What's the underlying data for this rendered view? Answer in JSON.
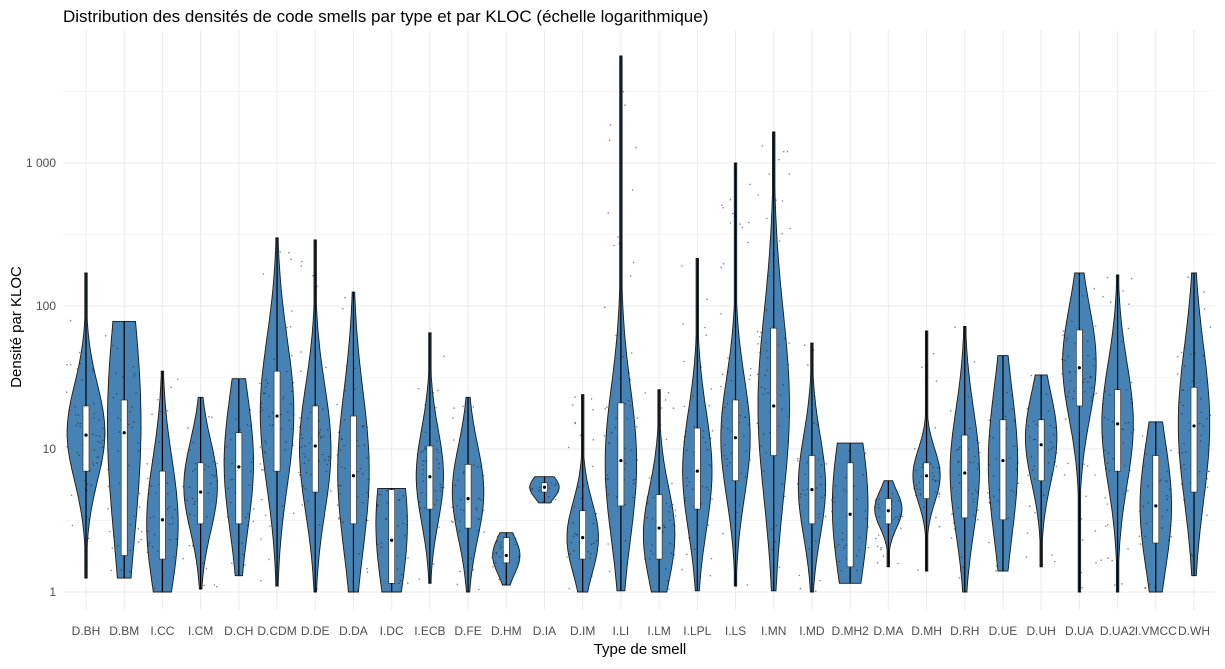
{
  "chart_data": {
    "type": "violin",
    "title": "Distribution des densités de code smells par type et par KLOC (échelle logarithmique)",
    "xlabel": "Type de smell",
    "ylabel": "Densité par KLOC",
    "y_scale": "log10",
    "ylim": [
      0.82,
      7200
    ],
    "y_ticks": [
      1,
      10,
      100,
      1000
    ],
    "y_tick_labels": [
      "1",
      "10",
      "100",
      "1 000"
    ],
    "grid": true,
    "fill_color": "#4682b4",
    "categories": [
      "D.BH",
      "D.BM",
      "I.CC",
      "I.CM",
      "D.CH",
      "D.CDM",
      "D.DE",
      "D.DA",
      "I.DC",
      "I.ECB",
      "D.FE",
      "D.HM",
      "D.IA",
      "D.IM",
      "I.LI",
      "I.LM",
      "I.LPL",
      "I.LS",
      "I.MN",
      "I.MD",
      "D.MH2",
      "D.MA",
      "D.MH",
      "D.RH",
      "D.UE",
      "D.UH",
      "D.UA",
      "D.UA2",
      "I.VMCC",
      "D.WH"
    ],
    "series": [
      {
        "category": "D.BH",
        "min": 1.25,
        "q1": 7,
        "median": 12.5,
        "q3": 20,
        "max": 170,
        "mode": 13,
        "width": 0.9
      },
      {
        "category": "D.BM",
        "min": 1.25,
        "q1": 1.8,
        "median": 13,
        "q3": 22,
        "max": 78,
        "mode": 15,
        "width": 0.8
      },
      {
        "category": "I.CC",
        "min": 1,
        "q1": 1.7,
        "median": 3.2,
        "q3": 7,
        "max": 35,
        "mode": 3,
        "width": 0.75
      },
      {
        "category": "I.CM",
        "min": 1.05,
        "q1": 3,
        "median": 5,
        "q3": 8,
        "max": 23,
        "mode": 5.5,
        "width": 0.8
      },
      {
        "category": "D.CH",
        "min": 1.3,
        "q1": 3,
        "median": 7.5,
        "q3": 13,
        "max": 31,
        "mode": 8,
        "width": 0.7
      },
      {
        "category": "D.CDM",
        "min": 1.1,
        "q1": 7,
        "median": 17,
        "q3": 35,
        "max": 300,
        "mode": 18,
        "width": 0.8
      },
      {
        "category": "D.DE",
        "min": 1,
        "q1": 5,
        "median": 10.5,
        "q3": 20,
        "max": 290,
        "mode": 10,
        "width": 0.75
      },
      {
        "category": "D.DA",
        "min": 1,
        "q1": 3,
        "median": 6.5,
        "q3": 17,
        "max": 125,
        "mode": 7,
        "width": 0.75
      },
      {
        "category": "I.DC",
        "min": 1,
        "q1": 1.15,
        "median": 2.3,
        "q3": 5.2,
        "max": 5.3,
        "mode": 3,
        "width": 0.75
      },
      {
        "category": "I.ECB",
        "min": 1.15,
        "q1": 3.8,
        "median": 6.4,
        "q3": 10.5,
        "max": 65,
        "mode": 6.5,
        "width": 0.65
      },
      {
        "category": "D.FE",
        "min": 1,
        "q1": 2.8,
        "median": 4.5,
        "q3": 7.8,
        "max": 23,
        "mode": 5,
        "width": 0.75
      },
      {
        "category": "D.HM",
        "min": 1.12,
        "q1": 1.6,
        "median": 1.8,
        "q3": 2.4,
        "max": 2.6,
        "mode": 1.8,
        "width": 0.65
      },
      {
        "category": "D.IA",
        "min": 4.2,
        "q1": 5,
        "median": 5.4,
        "q3": 5.8,
        "max": 6.4,
        "mode": 5.4,
        "width": 0.7
      },
      {
        "category": "D.IM",
        "min": 1,
        "q1": 1.7,
        "median": 2.4,
        "q3": 3.7,
        "max": 24,
        "mode": 2.4,
        "width": 0.75
      },
      {
        "category": "I.LI",
        "min": 1.02,
        "q1": 4,
        "median": 8.3,
        "q3": 21,
        "max": 5600,
        "mode": 8,
        "width": 0.75
      },
      {
        "category": "I.LM",
        "min": 1,
        "q1": 1.7,
        "median": 2.8,
        "q3": 4.8,
        "max": 26,
        "mode": 2.5,
        "width": 0.75
      },
      {
        "category": "I.LPL",
        "min": 1.02,
        "q1": 3.8,
        "median": 7,
        "q3": 14,
        "max": 215,
        "mode": 7,
        "width": 0.7
      },
      {
        "category": "I.LS",
        "min": 1.1,
        "q1": 6,
        "median": 12,
        "q3": 22,
        "max": 1000,
        "mode": 12,
        "width": 0.7
      },
      {
        "category": "I.MN",
        "min": 1.02,
        "q1": 9,
        "median": 20,
        "q3": 70,
        "max": 1650,
        "mode": 20,
        "width": 0.75
      },
      {
        "category": "I.MD",
        "min": 1,
        "q1": 3,
        "median": 5.2,
        "q3": 9,
        "max": 55,
        "mode": 5.5,
        "width": 0.65
      },
      {
        "category": "D.MH2",
        "min": 1.15,
        "q1": 1.5,
        "median": 3.5,
        "q3": 8,
        "max": 11,
        "mode": 4,
        "width": 0.85
      },
      {
        "category": "D.MA",
        "min": 1.5,
        "q1": 3,
        "median": 3.7,
        "q3": 4.5,
        "max": 6,
        "mode": 3.8,
        "width": 0.65
      },
      {
        "category": "D.MH",
        "min": 1.4,
        "q1": 4.5,
        "median": 6.5,
        "q3": 8,
        "max": 67,
        "mode": 6.5,
        "width": 0.65
      },
      {
        "category": "D.RH",
        "min": 1,
        "q1": 3.3,
        "median": 6.8,
        "q3": 12.5,
        "max": 72,
        "mode": 7,
        "width": 0.7
      },
      {
        "category": "D.UE",
        "min": 1.4,
        "q1": 3.2,
        "median": 8.3,
        "q3": 16,
        "max": 45,
        "mode": 8,
        "width": 0.7
      },
      {
        "category": "D.UH",
        "min": 1.5,
        "q1": 6,
        "median": 10.7,
        "q3": 16,
        "max": 33,
        "mode": 12,
        "width": 0.75
      },
      {
        "category": "D.UA",
        "min": 1,
        "q1": 20,
        "median": 37,
        "q3": 68,
        "max": 170,
        "mode": 40,
        "width": 0.8
      },
      {
        "category": "D.UA2",
        "min": 1,
        "q1": 7,
        "median": 15,
        "q3": 26,
        "max": 165,
        "mode": 15,
        "width": 0.75
      },
      {
        "category": "I.VMCC",
        "min": 1,
        "q1": 2.2,
        "median": 4,
        "q3": 9,
        "max": 15.5,
        "mode": 4,
        "width": 0.75
      },
      {
        "category": "D.WH",
        "min": 1.3,
        "q1": 5,
        "median": 14.5,
        "q3": 27,
        "max": 170,
        "mode": 15,
        "width": 0.75
      }
    ]
  }
}
